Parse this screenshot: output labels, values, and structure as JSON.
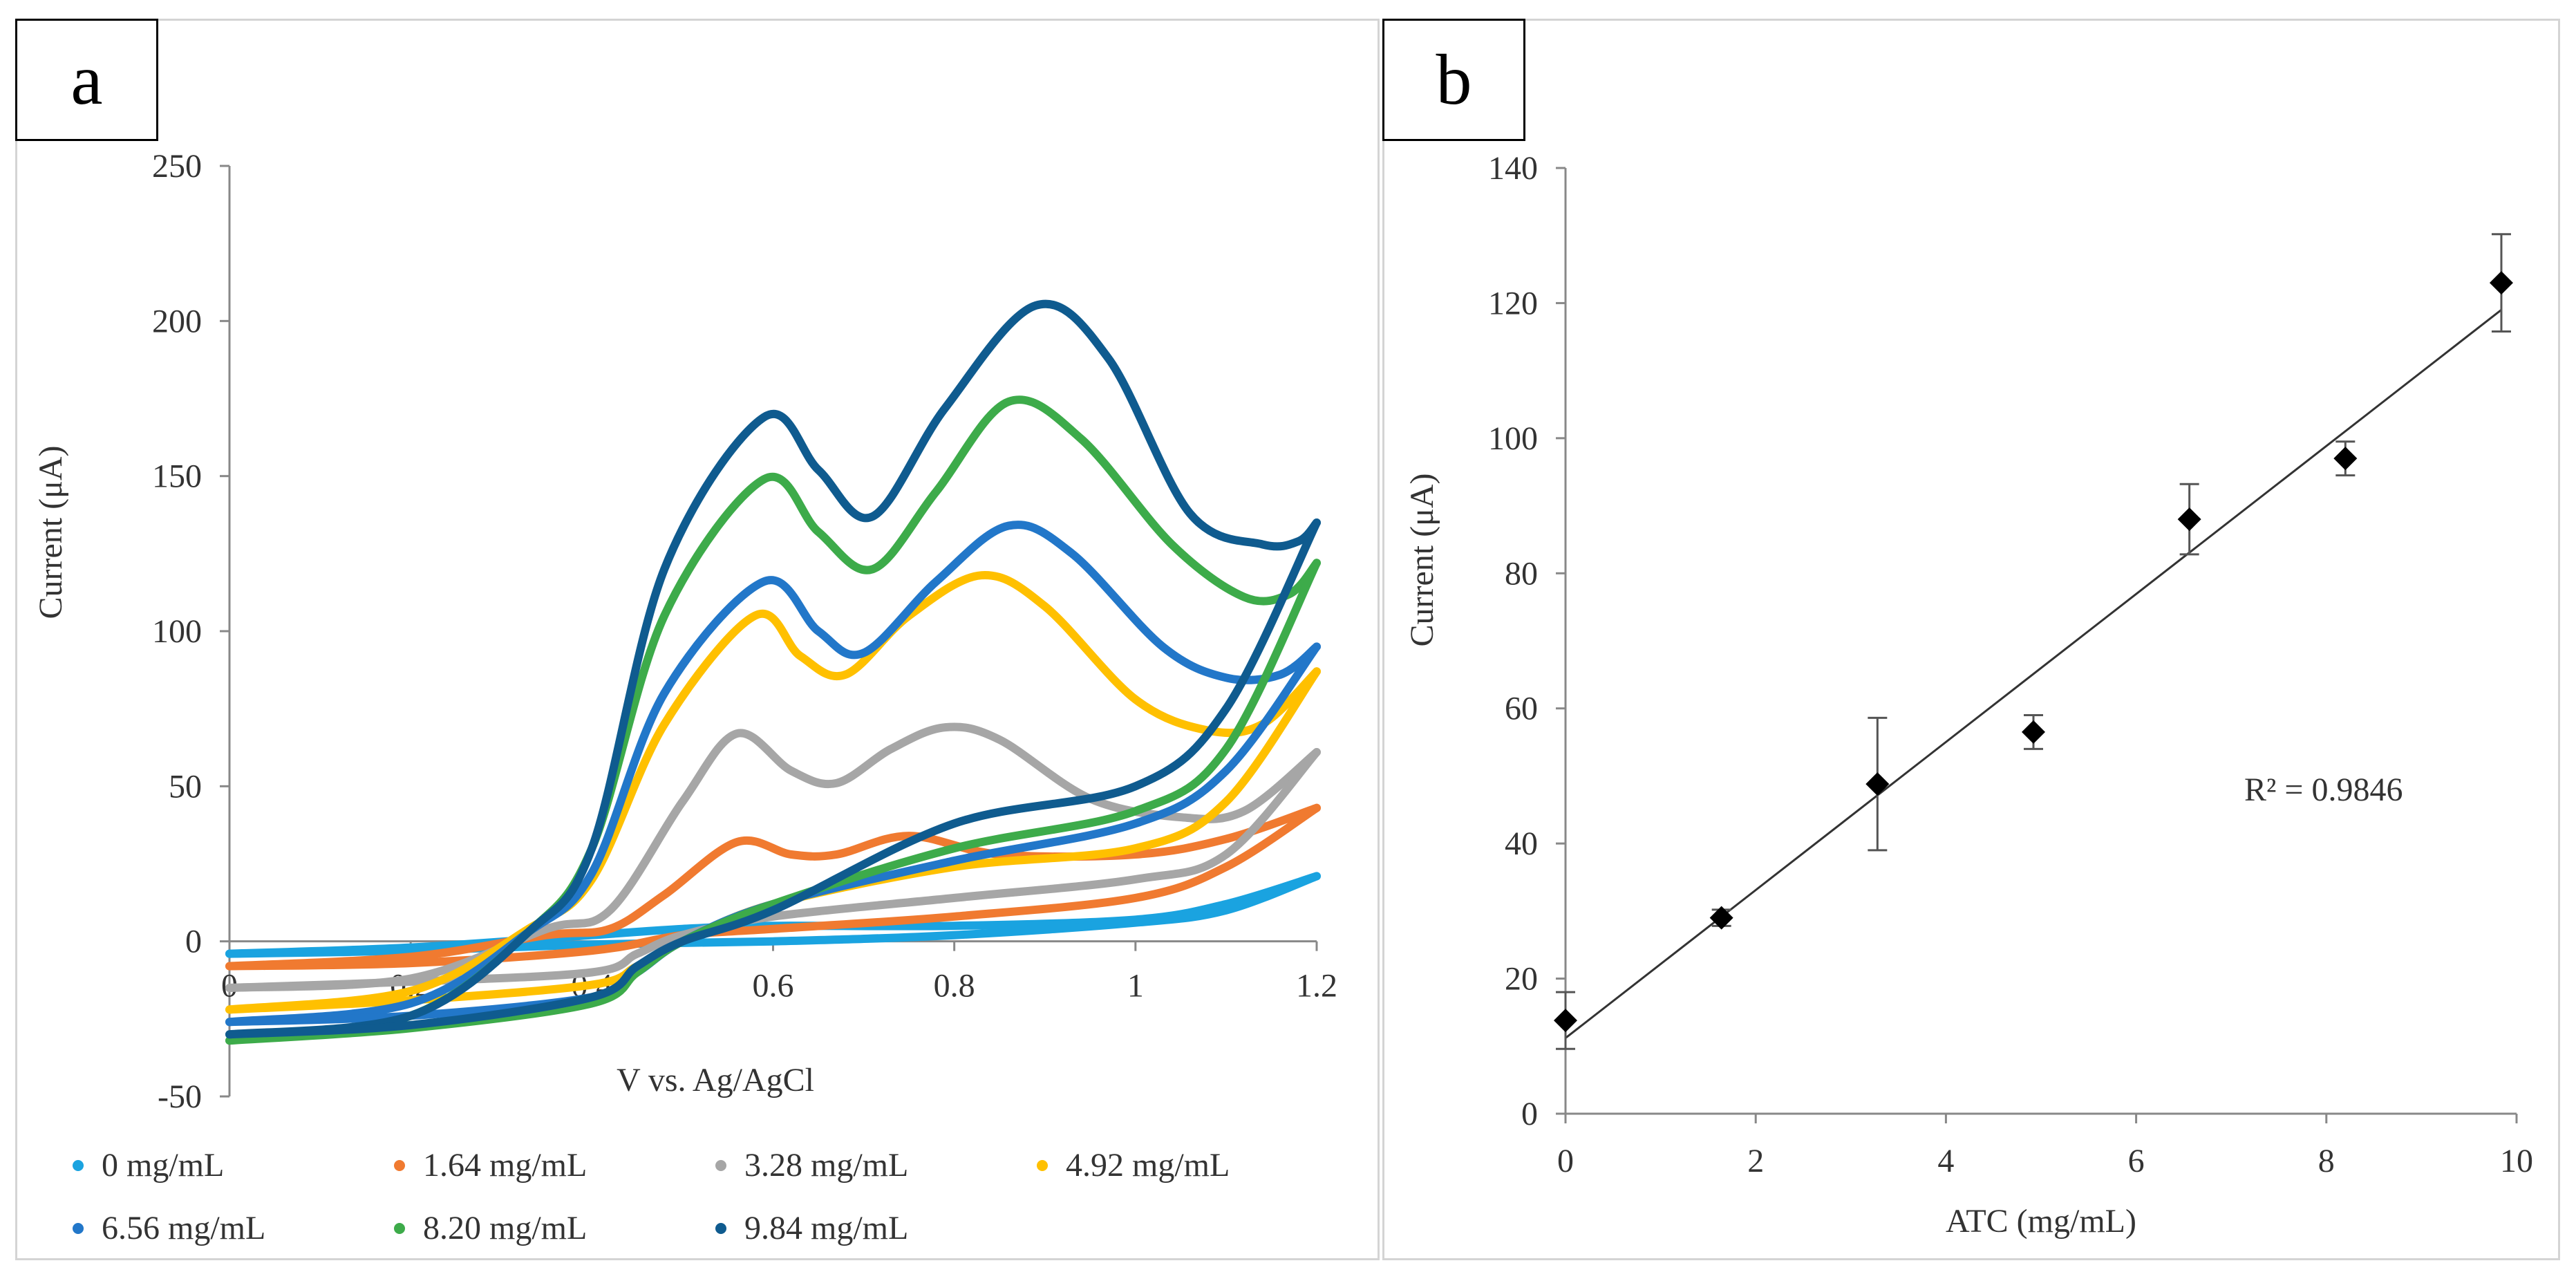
{
  "chart_data": [
    {
      "panel": "a",
      "type": "line",
      "panel_label": "a",
      "title": "",
      "xlabel": "V vs. Ag/AgCl",
      "ylabel": "Current (μA)",
      "xlim": [
        0,
        1.2
      ],
      "ylim": [
        -50,
        250
      ],
      "x_ticks": [
        0,
        0.2,
        0.4,
        0.6,
        0.8,
        1,
        1.2
      ],
      "x_tick_labels": [
        "0",
        "0.2",
        "0.4",
        "0.6",
        "0.8",
        "1",
        "1.2"
      ],
      "y_ticks": [
        -50,
        0,
        50,
        100,
        150,
        200,
        250
      ],
      "y_tick_labels": [
        "-50",
        "0",
        "50",
        "100",
        "150",
        "200",
        "250"
      ],
      "legend_position": "bottom",
      "series": [
        {
          "name": "0 mg/mL",
          "color": "#1aa3e0",
          "forward": [
            [
              0,
              -4
            ],
            [
              0.2,
              -2
            ],
            [
              0.4,
              2
            ],
            [
              0.5,
              4
            ],
            [
              0.6,
              5
            ],
            [
              0.8,
              5
            ],
            [
              1.0,
              7
            ],
            [
              1.1,
              12
            ],
            [
              1.2,
              21
            ]
          ],
          "reverse": [
            [
              1.2,
              21
            ],
            [
              1.1,
              10
            ],
            [
              1.0,
              6
            ],
            [
              0.8,
              2
            ],
            [
              0.6,
              0
            ],
            [
              0.4,
              -1
            ],
            [
              0.2,
              -3
            ],
            [
              0,
              -4
            ]
          ]
        },
        {
          "name": "1.64 mg/mL",
          "color": "#f07a30",
          "forward": [
            [
              0,
              -8
            ],
            [
              0.2,
              -5
            ],
            [
              0.35,
              2
            ],
            [
              0.42,
              4
            ],
            [
              0.48,
              15
            ],
            [
              0.56,
              32
            ],
            [
              0.62,
              28
            ],
            [
              0.67,
              28
            ],
            [
              0.75,
              34
            ],
            [
              0.85,
              28
            ],
            [
              1.0,
              28
            ],
            [
              1.1,
              33
            ],
            [
              1.2,
              43
            ]
          ],
          "reverse": [
            [
              1.2,
              43
            ],
            [
              1.1,
              24
            ],
            [
              1.0,
              14
            ],
            [
              0.8,
              8
            ],
            [
              0.6,
              4
            ],
            [
              0.5,
              2
            ],
            [
              0.4,
              -3
            ],
            [
              0.2,
              -7
            ],
            [
              0,
              -8
            ]
          ]
        },
        {
          "name": "3.28 mg/mL",
          "color": "#a6a6a6",
          "forward": [
            [
              0,
              -15
            ],
            [
              0.2,
              -12
            ],
            [
              0.35,
              4
            ],
            [
              0.42,
              10
            ],
            [
              0.5,
              45
            ],
            [
              0.56,
              67
            ],
            [
              0.62,
              55
            ],
            [
              0.67,
              51
            ],
            [
              0.73,
              62
            ],
            [
              0.79,
              69
            ],
            [
              0.85,
              65
            ],
            [
              0.95,
              46
            ],
            [
              1.05,
              40
            ],
            [
              1.12,
              42
            ],
            [
              1.2,
              61
            ]
          ],
          "reverse": [
            [
              1.2,
              61
            ],
            [
              1.1,
              28
            ],
            [
              1.0,
              20
            ],
            [
              0.8,
              14
            ],
            [
              0.6,
              8
            ],
            [
              0.5,
              2
            ],
            [
              0.45,
              -4
            ],
            [
              0.4,
              -10
            ],
            [
              0.2,
              -13
            ],
            [
              0,
              -15
            ]
          ]
        },
        {
          "name": "4.92 mg/mL",
          "color": "#ffc000",
          "forward": [
            [
              0,
              -22
            ],
            [
              0.2,
              -16
            ],
            [
              0.33,
              4
            ],
            [
              0.4,
              20
            ],
            [
              0.48,
              70
            ],
            [
              0.58,
              105
            ],
            [
              0.63,
              92
            ],
            [
              0.68,
              86
            ],
            [
              0.75,
              105
            ],
            [
              0.83,
              118
            ],
            [
              0.9,
              108
            ],
            [
              1.0,
              78
            ],
            [
              1.08,
              68
            ],
            [
              1.14,
              70
            ],
            [
              1.2,
              87
            ]
          ],
          "reverse": [
            [
              1.2,
              87
            ],
            [
              1.1,
              45
            ],
            [
              1.0,
              30
            ],
            [
              0.8,
              24
            ],
            [
              0.6,
              12
            ],
            [
              0.5,
              0
            ],
            [
              0.45,
              -8
            ],
            [
              0.4,
              -14
            ],
            [
              0.2,
              -19
            ],
            [
              0,
              -22
            ]
          ]
        },
        {
          "name": "6.56 mg/mL",
          "color": "#2277c9",
          "forward": [
            [
              0,
              -26
            ],
            [
              0.2,
              -20
            ],
            [
              0.33,
              3
            ],
            [
              0.4,
              22
            ],
            [
              0.48,
              80
            ],
            [
              0.59,
              116
            ],
            [
              0.65,
              100
            ],
            [
              0.7,
              93
            ],
            [
              0.78,
              116
            ],
            [
              0.86,
              134
            ],
            [
              0.93,
              125
            ],
            [
              1.03,
              95
            ],
            [
              1.1,
              85
            ],
            [
              1.16,
              86
            ],
            [
              1.2,
              95
            ]
          ],
          "reverse": [
            [
              1.2,
              95
            ],
            [
              1.1,
              55
            ],
            [
              1.0,
              38
            ],
            [
              0.8,
              26
            ],
            [
              0.6,
              12
            ],
            [
              0.5,
              0
            ],
            [
              0.45,
              -10
            ],
            [
              0.4,
              -18
            ],
            [
              0.2,
              -24
            ],
            [
              0,
              -26
            ]
          ]
        },
        {
          "name": "8.20 mg/mL",
          "color": "#3dab4a",
          "forward": [
            [
              0,
              -32
            ],
            [
              0.2,
              -24
            ],
            [
              0.33,
              3
            ],
            [
              0.4,
              30
            ],
            [
              0.48,
              105
            ],
            [
              0.59,
              149
            ],
            [
              0.65,
              132
            ],
            [
              0.71,
              120
            ],
            [
              0.78,
              145
            ],
            [
              0.86,
              174
            ],
            [
              0.94,
              162
            ],
            [
              1.04,
              128
            ],
            [
              1.12,
              111
            ],
            [
              1.17,
              112
            ],
            [
              1.2,
              122
            ]
          ],
          "reverse": [
            [
              1.2,
              122
            ],
            [
              1.1,
              62
            ],
            [
              1.0,
              42
            ],
            [
              0.8,
              30
            ],
            [
              0.6,
              12
            ],
            [
              0.5,
              0
            ],
            [
              0.45,
              -10
            ],
            [
              0.4,
              -20
            ],
            [
              0.2,
              -28
            ],
            [
              0,
              -32
            ]
          ]
        },
        {
          "name": "9.84 mg/mL",
          "color": "#0f5b8f",
          "forward": [
            [
              0,
              -30
            ],
            [
              0.2,
              -24
            ],
            [
              0.33,
              3
            ],
            [
              0.4,
              30
            ],
            [
              0.48,
              120
            ],
            [
              0.59,
              169
            ],
            [
              0.65,
              152
            ],
            [
              0.71,
              137
            ],
            [
              0.79,
              172
            ],
            [
              0.89,
              205
            ],
            [
              0.97,
              188
            ],
            [
              1.06,
              138
            ],
            [
              1.14,
              128
            ],
            [
              1.18,
              129
            ],
            [
              1.2,
              135
            ]
          ],
          "reverse": [
            [
              1.2,
              135
            ],
            [
              1.1,
              75
            ],
            [
              1.0,
              50
            ],
            [
              0.8,
              38
            ],
            [
              0.6,
              10
            ],
            [
              0.5,
              0
            ],
            [
              0.45,
              -8
            ],
            [
              0.4,
              -18
            ],
            [
              0.2,
              -27
            ],
            [
              0,
              -30
            ]
          ]
        }
      ]
    },
    {
      "panel": "b",
      "type": "scatter",
      "panel_label": "b",
      "title": "",
      "xlabel": "ATC (mg/mL)",
      "ylabel": "Current (μA)",
      "xlim": [
        0,
        10
      ],
      "ylim": [
        0,
        140
      ],
      "x_ticks": [
        0,
        2,
        4,
        6,
        8,
        10
      ],
      "x_tick_labels": [
        "0",
        "2",
        "4",
        "6",
        "8",
        "10"
      ],
      "y_ticks": [
        0,
        20,
        40,
        60,
        80,
        100,
        120,
        140
      ],
      "y_tick_labels": [
        "0",
        "20",
        "40",
        "60",
        "80",
        "100",
        "120",
        "140"
      ],
      "points": [
        {
          "x": 0,
          "y": 13.8,
          "err": 4.2
        },
        {
          "x": 1.64,
          "y": 29,
          "err": 1.2
        },
        {
          "x": 3.28,
          "y": 48.8,
          "err": 9.8
        },
        {
          "x": 4.92,
          "y": 56.5,
          "err": 2.5
        },
        {
          "x": 6.56,
          "y": 88,
          "err": 5.2
        },
        {
          "x": 8.2,
          "y": 97,
          "err": 2.5
        },
        {
          "x": 9.84,
          "y": 123,
          "err": 7.2
        }
      ],
      "trendline": {
        "x": [
          0,
          9.84
        ],
        "y": [
          11.2,
          119.0
        ]
      },
      "annotation": "R² = 0.9846",
      "marker_color": "#000000"
    }
  ]
}
